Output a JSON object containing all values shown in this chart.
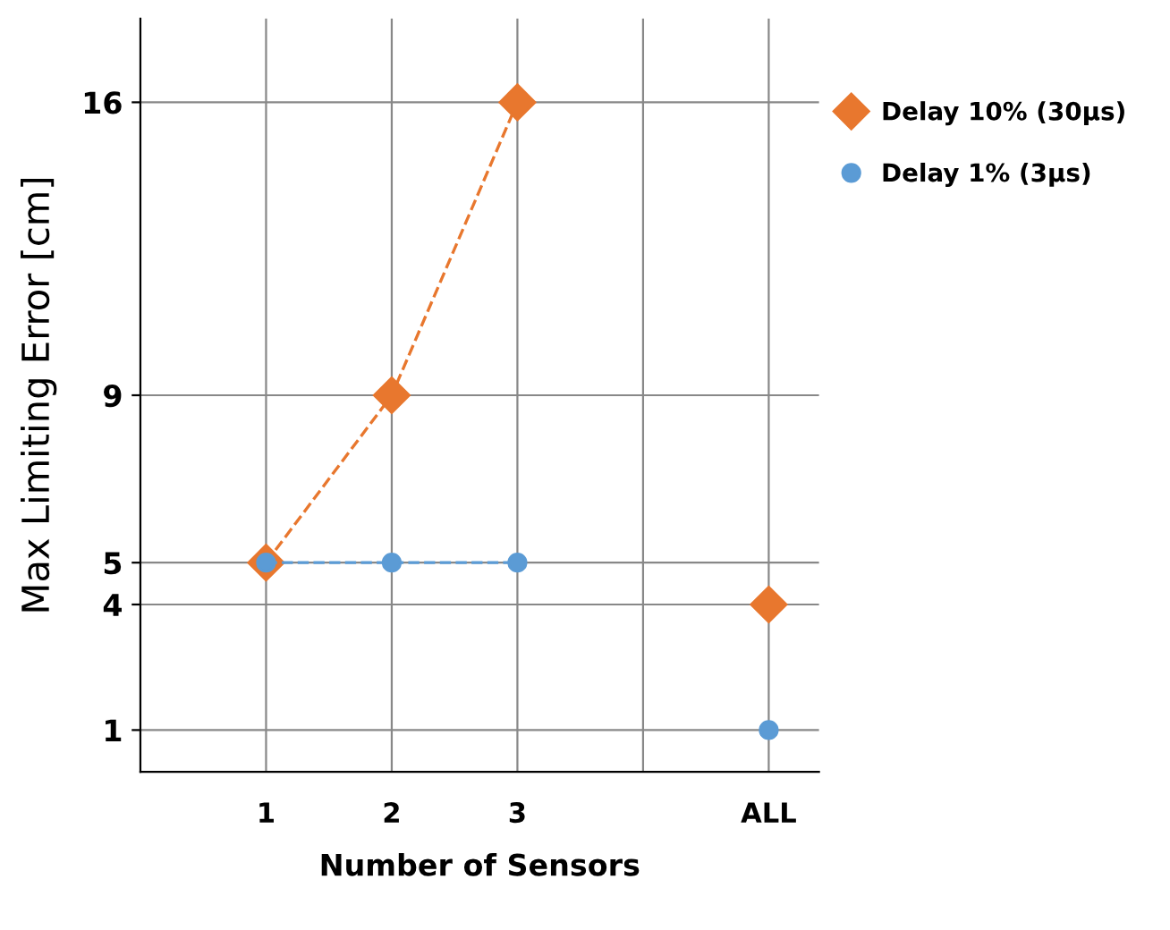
{
  "chart_data": {
    "type": "line",
    "xlabel": "Number of Sensors",
    "ylabel": "Max Limiting Error [cm]",
    "categories": [
      "1",
      "2",
      "3",
      null,
      "ALL"
    ],
    "series": [
      {
        "name": "Delay 10% (30µs)",
        "color": "#e8772e",
        "marker": "diamond",
        "line_style": "dashed",
        "values": [
          5,
          9,
          16,
          null,
          4
        ]
      },
      {
        "name": "Delay 1% (3µs)",
        "color": "#5b9bd5",
        "marker": "circle",
        "line_style": "dashed",
        "values": [
          5,
          5,
          5,
          null,
          1
        ]
      }
    ],
    "ylim": [
      0,
      18
    ],
    "yticks": [
      1,
      4,
      5,
      9,
      16
    ],
    "grid": true,
    "legend": "top right"
  }
}
